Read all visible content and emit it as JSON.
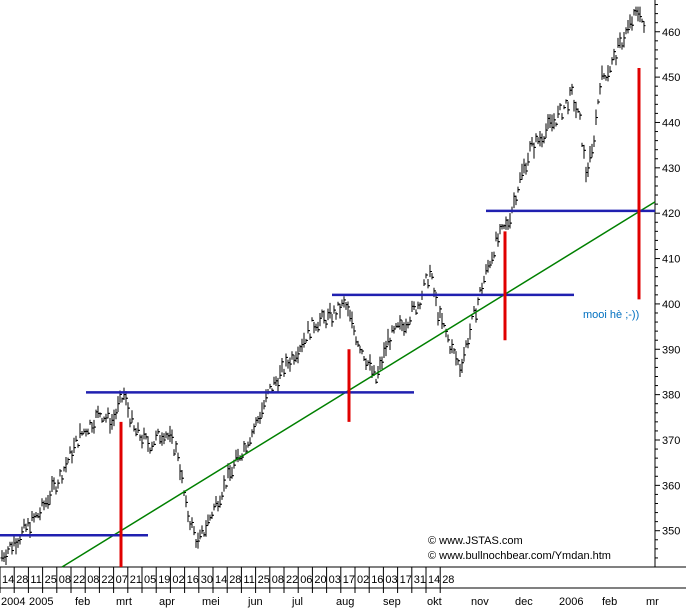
{
  "chart_data": {
    "type": "ohlc",
    "ylim": [
      342,
      467
    ],
    "y_ticks": [
      350,
      360,
      370,
      380,
      390,
      400,
      410,
      420,
      430,
      440,
      450,
      460
    ],
    "x_day_labels": [
      "14",
      "28",
      "11",
      "25",
      "08",
      "22",
      "08",
      "22",
      "07",
      "21",
      "05",
      "19",
      "02",
      "16",
      "30",
      "14",
      "28",
      "11",
      "25",
      "08",
      "22",
      "06",
      "20",
      "03",
      "17",
      "02",
      "16",
      "03",
      "17",
      "31",
      "14",
      "28"
    ],
    "x_month_labels": [
      "2004",
      "2005",
      "feb",
      "mrt",
      "apr",
      "mei",
      "jun",
      "jul",
      "aug",
      "sep",
      "okt",
      "nov",
      "dec",
      "2006",
      "feb",
      "mr"
    ],
    "annotation": "mooi hè ;-))",
    "copyright_lines": [
      "© www.JSTAS.com",
      "© www.bullnochbear.com/Ymdan.htm"
    ],
    "key_points": [
      {
        "x": 0,
        "y": 344
      },
      {
        "x": 20,
        "y": 349
      },
      {
        "x": 40,
        "y": 354
      },
      {
        "x": 60,
        "y": 362
      },
      {
        "x": 80,
        "y": 371
      },
      {
        "x": 100,
        "y": 376
      },
      {
        "x": 112,
        "y": 374
      },
      {
        "x": 124,
        "y": 380
      },
      {
        "x": 134,
        "y": 372
      },
      {
        "x": 150,
        "y": 369
      },
      {
        "x": 165,
        "y": 372
      },
      {
        "x": 178,
        "y": 367
      },
      {
        "x": 186,
        "y": 355
      },
      {
        "x": 198,
        "y": 347
      },
      {
        "x": 210,
        "y": 353
      },
      {
        "x": 222,
        "y": 359
      },
      {
        "x": 238,
        "y": 366
      },
      {
        "x": 255,
        "y": 373
      },
      {
        "x": 270,
        "y": 381
      },
      {
        "x": 285,
        "y": 386
      },
      {
        "x": 300,
        "y": 391
      },
      {
        "x": 315,
        "y": 396
      },
      {
        "x": 330,
        "y": 397
      },
      {
        "x": 345,
        "y": 400
      },
      {
        "x": 356,
        "y": 393
      },
      {
        "x": 366,
        "y": 388
      },
      {
        "x": 376,
        "y": 383
      },
      {
        "x": 388,
        "y": 392
      },
      {
        "x": 405,
        "y": 396
      },
      {
        "x": 418,
        "y": 400
      },
      {
        "x": 430,
        "y": 407
      },
      {
        "x": 438,
        "y": 398
      },
      {
        "x": 450,
        "y": 391
      },
      {
        "x": 460,
        "y": 386
      },
      {
        "x": 470,
        "y": 394
      },
      {
        "x": 482,
        "y": 404
      },
      {
        "x": 495,
        "y": 413
      },
      {
        "x": 508,
        "y": 418
      },
      {
        "x": 518,
        "y": 426
      },
      {
        "x": 530,
        "y": 434
      },
      {
        "x": 545,
        "y": 438
      },
      {
        "x": 560,
        "y": 442
      },
      {
        "x": 572,
        "y": 446
      },
      {
        "x": 580,
        "y": 440
      },
      {
        "x": 586,
        "y": 429
      },
      {
        "x": 592,
        "y": 433
      },
      {
        "x": 600,
        "y": 449
      },
      {
        "x": 612,
        "y": 453
      },
      {
        "x": 624,
        "y": 459
      },
      {
        "x": 634,
        "y": 463
      },
      {
        "x": 640,
        "y": 465
      },
      {
        "x": 644,
        "y": 460
      }
    ],
    "horizontal_lines": [
      {
        "x1": 0,
        "x2": 148,
        "y": 349
      },
      {
        "x1": 86,
        "x2": 414,
        "y": 380.5
      },
      {
        "x1": 332,
        "x2": 574,
        "y": 402
      },
      {
        "x1": 486,
        "x2": 655,
        "y": 420.5
      }
    ],
    "vertical_lines": [
      {
        "x": 121,
        "y1": 342,
        "y2": 374
      },
      {
        "x": 349,
        "y1": 374,
        "y2": 390
      },
      {
        "x": 505,
        "y1": 392,
        "y2": 416
      },
      {
        "x": 639,
        "y1": 401,
        "y2": 452
      }
    ],
    "trendline": {
      "x1": 62,
      "y1": 342,
      "x2": 655,
      "y2": 422.5
    },
    "colors": {
      "bars": "#000000",
      "horizontal": "#2020b0",
      "vertical": "#e00000",
      "trend": "#008000",
      "annotation": "#0070c0"
    }
  }
}
